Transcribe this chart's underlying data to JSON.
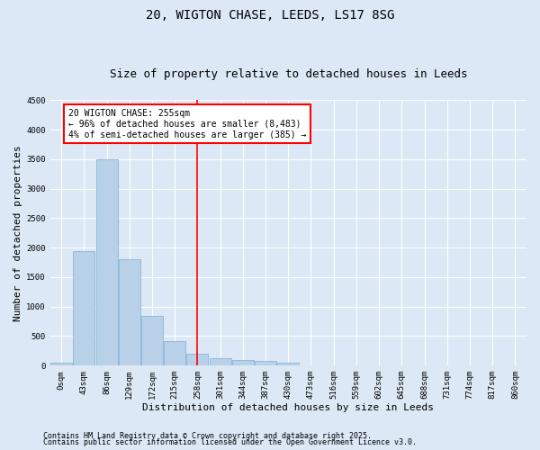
{
  "title_line1": "20, WIGTON CHASE, LEEDS, LS17 8SG",
  "title_line2": "Size of property relative to detached houses in Leeds",
  "xlabel": "Distribution of detached houses by size in Leeds",
  "ylabel": "Number of detached properties",
  "bin_labels": [
    "0sqm",
    "43sqm",
    "86sqm",
    "129sqm",
    "172sqm",
    "215sqm",
    "258sqm",
    "301sqm",
    "344sqm",
    "387sqm",
    "430sqm",
    "473sqm",
    "516sqm",
    "559sqm",
    "602sqm",
    "645sqm",
    "688sqm",
    "731sqm",
    "774sqm",
    "817sqm",
    "860sqm"
  ],
  "bar_heights": [
    50,
    1950,
    3500,
    1800,
    850,
    420,
    200,
    120,
    100,
    75,
    45,
    10,
    5,
    3,
    2,
    1,
    1,
    0,
    0,
    0,
    0
  ],
  "bar_color": "#b8d0e8",
  "bar_edge_color": "#7aafd4",
  "red_line_x": 6.0,
  "ylim": [
    0,
    4500
  ],
  "yticks": [
    0,
    500,
    1000,
    1500,
    2000,
    2500,
    3000,
    3500,
    4000,
    4500
  ],
  "annotation_title": "20 WIGTON CHASE: 255sqm",
  "annotation_line1": "← 96% of detached houses are smaller (8,483)",
  "annotation_line2": "4% of semi-detached houses are larger (385) →",
  "footnote1": "Contains HM Land Registry data © Crown copyright and database right 2025.",
  "footnote2": "Contains public sector information licensed under the Open Government Licence v3.0.",
  "bg_color": "#dce8f5",
  "plot_bg_color": "#dce8f5",
  "grid_color": "#ffffff",
  "title_fontsize": 10,
  "subtitle_fontsize": 9,
  "axis_label_fontsize": 8,
  "tick_fontsize": 6.5,
  "annotation_fontsize": 7,
  "footnote_fontsize": 6
}
